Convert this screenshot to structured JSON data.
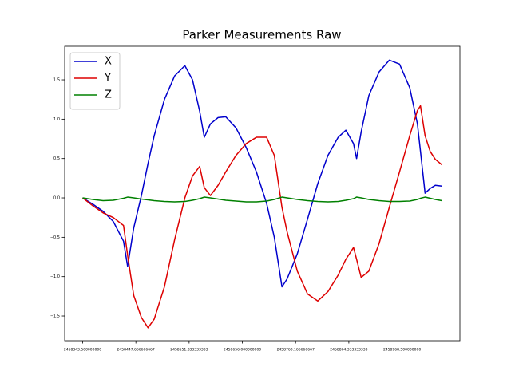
{
  "chart_data": {
    "type": "line",
    "title": "Parker Measurements Raw",
    "x": [
      2458343.5,
      2458363.5,
      2458383.5,
      2458403.5,
      2458423.5,
      2458431.5,
      2458443.5,
      2458458.5,
      2458471.5,
      2458483.5,
      2458503.5,
      2458523.5,
      2458543.5,
      2458558.5,
      2458572.5,
      2458581.5,
      2458593.5,
      2458608.5,
      2458623.5,
      2458643.5,
      2458663.5,
      2458683.5,
      2458703.5,
      2458718.5,
      2458733.5,
      2458743.5,
      2458763.5,
      2458783.5,
      2458803.5,
      2458823.5,
      2458843.5,
      2458858.5,
      2458873.5,
      2458879.5,
      2458888.5,
      2458903.5,
      2458923.5,
      2458943.5,
      2458963.5,
      2458983.5,
      2458998.5,
      2459004.5,
      2459013.5,
      2459023.5,
      2459033.5,
      2459046.5
    ],
    "series": [
      {
        "name": "X",
        "color": "#0000cc",
        "values": [
          0,
          -0.08,
          -0.17,
          -0.3,
          -0.55,
          -0.87,
          -0.38,
          0.03,
          0.44,
          0.79,
          1.25,
          1.55,
          1.68,
          1.5,
          1.1,
          0.77,
          0.94,
          1.02,
          1.03,
          0.89,
          0.64,
          0.33,
          -0.07,
          -0.5,
          -1.13,
          -1.03,
          -0.71,
          -0.27,
          0.18,
          0.54,
          0.77,
          0.86,
          0.69,
          0.5,
          0.84,
          1.3,
          1.6,
          1.75,
          1.7,
          1.4,
          0.94,
          0.59,
          0.06,
          0.12,
          0.16,
          0.15
        ]
      },
      {
        "name": "Y",
        "color": "#dd0000",
        "values": [
          0,
          -0.1,
          -0.19,
          -0.25,
          -0.35,
          -0.73,
          -1.24,
          -1.52,
          -1.65,
          -1.54,
          -1.13,
          -0.53,
          0,
          0.28,
          0.4,
          0.13,
          0.03,
          0.16,
          0.33,
          0.54,
          0.69,
          0.77,
          0.77,
          0.54,
          -0.12,
          -0.43,
          -0.93,
          -1.22,
          -1.31,
          -1.19,
          -0.98,
          -0.78,
          -0.63,
          -0.78,
          -1.01,
          -0.93,
          -0.58,
          -0.12,
          0.33,
          0.79,
          1.11,
          1.17,
          0.79,
          0.59,
          0.49,
          0.42
        ]
      },
      {
        "name": "Z",
        "color": "#008000",
        "values": [
          0,
          -0.02,
          -0.035,
          -0.03,
          -0.005,
          0.01,
          0,
          -0.015,
          -0.025,
          -0.035,
          -0.045,
          -0.05,
          -0.045,
          -0.03,
          -0.01,
          0.01,
          0,
          -0.015,
          -0.03,
          -0.04,
          -0.05,
          -0.05,
          -0.04,
          -0.02,
          0.01,
          0,
          -0.02,
          -0.035,
          -0.045,
          -0.05,
          -0.045,
          -0.03,
          -0.01,
          0.01,
          0,
          -0.02,
          -0.035,
          -0.045,
          -0.045,
          -0.04,
          -0.02,
          -0.005,
          0.01,
          -0.005,
          -0.02,
          -0.035
        ]
      }
    ],
    "xlim": [
      2458308.35,
      2459081.65
    ],
    "ylim": [
      -1.814,
      1.926
    ],
    "xticks": [
      {
        "value": 2458343.5,
        "label": "2458343.500000000"
      },
      {
        "value": 2458447.666666667,
        "label": "2458447.666666667"
      },
      {
        "value": 2458551.833333333,
        "label": "2458551.833333333"
      },
      {
        "value": 2458656.0,
        "label": "2458656.000000000"
      },
      {
        "value": 2458760.166666667,
        "label": "2458760.166666667"
      },
      {
        "value": 2458864.333333333,
        "label": "2458864.333333333"
      },
      {
        "value": 2458968.5,
        "label": "2458968.500000000"
      }
    ],
    "yticks": [
      {
        "value": -1.5,
        "label": "−1.5"
      },
      {
        "value": -1.0,
        "label": "−1.0"
      },
      {
        "value": -0.5,
        "label": "−0.5"
      },
      {
        "value": 0,
        "label": "0.0"
      },
      0.5,
      {
        "value": 1.0,
        "label": "1.0"
      },
      1.5
    ],
    "legend": "upper left"
  }
}
